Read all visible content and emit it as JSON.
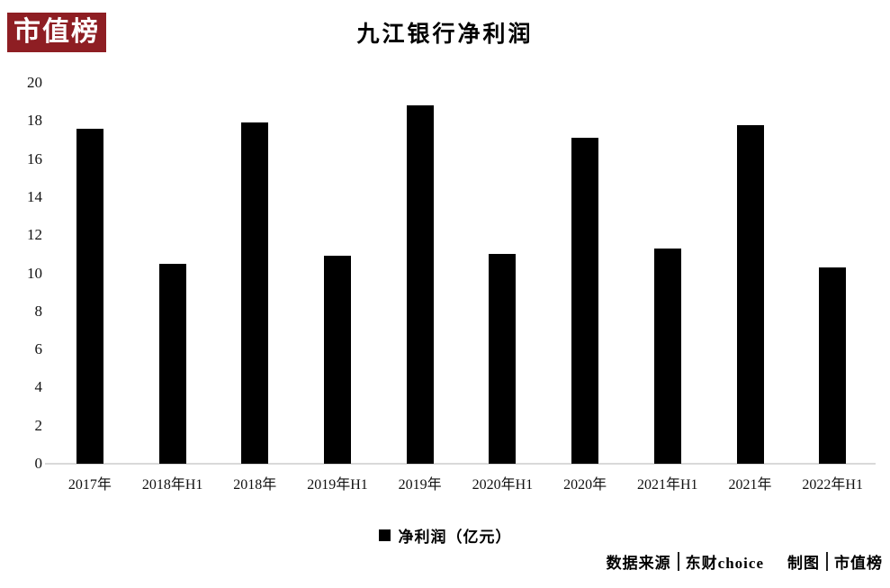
{
  "logo": {
    "text": "市值榜",
    "bg_color": "#8e1e23",
    "text_color": "#ffffff"
  },
  "title": "九江银行净利润",
  "chart_data": {
    "type": "bar",
    "title": "九江银行净利润",
    "categories": [
      "2017年",
      "2018年H1",
      "2018年",
      "2019年H1",
      "2019年",
      "2020年H1",
      "2020年",
      "2021年H1",
      "2021年",
      "2022年H1"
    ],
    "values": [
      17.6,
      10.5,
      17.9,
      10.9,
      18.8,
      11.0,
      17.1,
      11.3,
      17.8,
      10.3
    ],
    "series_name": "净利润（亿元）",
    "xlabel": "",
    "ylabel": "",
    "ylim": [
      0,
      20
    ],
    "ytick_step": 2,
    "grid": false,
    "legend_position": "bottom",
    "bar_color": "#000000",
    "axis_line_color": "#d9d9d9"
  },
  "legend": {
    "label": "净利润（亿元）"
  },
  "footer": {
    "source_label": "数据来源",
    "source_value": "东财choice",
    "chart_by_label": "制图",
    "chart_by_value": "市值榜"
  }
}
